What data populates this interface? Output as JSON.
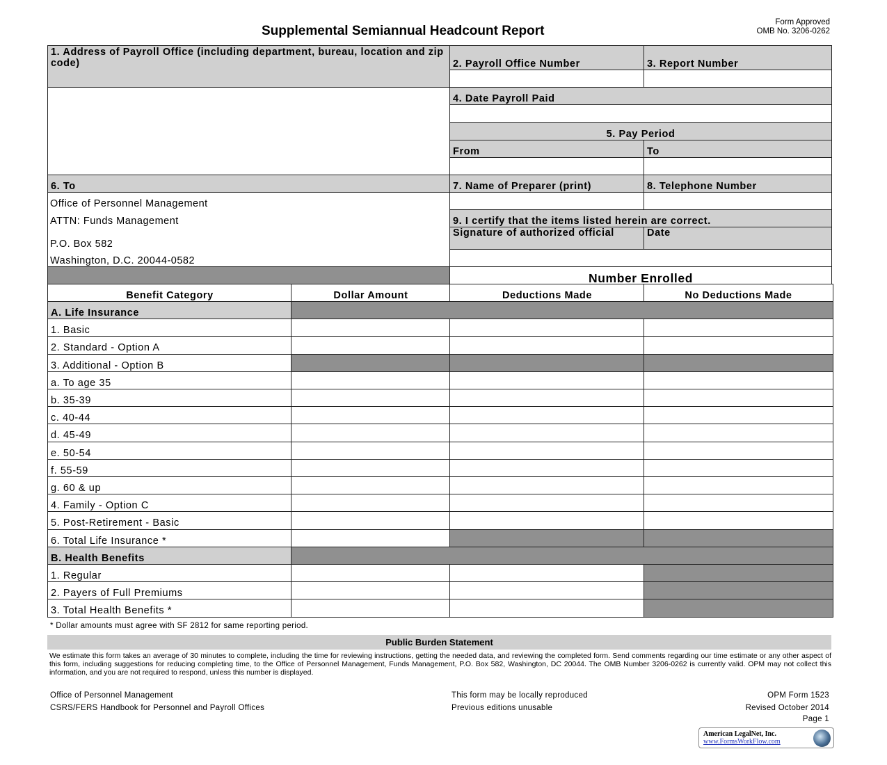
{
  "header": {
    "title": "Supplemental Semiannual Headcount Report",
    "approval": "Form Approved",
    "omb": "OMB No. 3206-0262"
  },
  "fields": {
    "f1": "1. Address of Payroll Office (including department, bureau, location and zip code)",
    "f2": "2. Payroll Office Number",
    "f3": "3. Report Number",
    "f4": "4. Date Payroll Paid",
    "f5": "5. Pay Period",
    "from": "From",
    "to": "To",
    "f6": "6. To",
    "f7": "7. Name of Preparer (print)",
    "f8": "8. Telephone Number",
    "f9": "9. I certify that the items listed herein are correct.",
    "signature": "Signature of authorized official",
    "date": "Date",
    "to_address": [
      "Office of Personnel Management",
      "ATTN: Funds Management",
      "P.O. Box 582",
      "Washington, D.C. 20044-0582"
    ]
  },
  "table": {
    "number_enrolled": "Number Enrolled",
    "columns": [
      "Benefit Category",
      "Dollar Amount",
      "Deductions Made",
      "No Deductions Made"
    ],
    "rows": [
      {
        "label": "A. Life Insurance",
        "section": true,
        "shaded": [
          false,
          true,
          true,
          true
        ]
      },
      {
        "label": "1. Basic",
        "shaded": [
          false,
          false,
          false,
          false
        ]
      },
      {
        "label": "2. Standard - Option A",
        "shaded": [
          false,
          false,
          false,
          false
        ]
      },
      {
        "label": "3. Additional - Option B",
        "shaded": [
          false,
          true,
          true,
          true
        ]
      },
      {
        "label": "a. To age 35",
        "shaded": [
          false,
          false,
          false,
          false
        ]
      },
      {
        "label": "b. 35-39",
        "shaded": [
          false,
          false,
          false,
          false
        ]
      },
      {
        "label": "c. 40-44",
        "shaded": [
          false,
          false,
          false,
          false
        ]
      },
      {
        "label": "d. 45-49",
        "shaded": [
          false,
          false,
          false,
          false
        ]
      },
      {
        "label": "e. 50-54",
        "shaded": [
          false,
          false,
          false,
          false
        ]
      },
      {
        "label": "f. 55-59",
        "shaded": [
          false,
          false,
          false,
          false
        ]
      },
      {
        "label": "g. 60 & up",
        "shaded": [
          false,
          false,
          false,
          false
        ]
      },
      {
        "label": "4. Family - Option C",
        "shaded": [
          false,
          false,
          false,
          false
        ]
      },
      {
        "label": "5. Post-Retirement - Basic",
        "shaded": [
          false,
          false,
          false,
          false
        ]
      },
      {
        "label": "6. Total Life Insurance *",
        "shaded": [
          false,
          false,
          true,
          true
        ]
      },
      {
        "label": "B. Health Benefits",
        "section": true,
        "shaded": [
          false,
          true,
          true,
          true
        ]
      },
      {
        "label": "1. Regular",
        "shaded": [
          false,
          false,
          false,
          true
        ]
      },
      {
        "label": "2. Payers of Full Premiums",
        "shaded": [
          false,
          false,
          false,
          true
        ]
      },
      {
        "label": "3. Total Health Benefits *",
        "shaded": [
          false,
          false,
          false,
          true
        ]
      }
    ]
  },
  "footnote": "* Dollar amounts must agree with SF 2812 for same reporting period.",
  "burden": {
    "title": "Public Burden Statement",
    "text": "We estimate this form takes an average of 30 minutes to complete, including the time for reviewing instructions, getting the needed data, and reviewing the completed form. Send comments regarding our time estimate or any other aspect of this form, including suggestions for reducing completing time, to the Office of Personnel Management, Funds Management, P.O. Box 582, Washington, DC 20044. The OMB Number 3206-0262 is currently valid. OPM may not collect this information, and you are not required to respond, unless this number is displayed."
  },
  "footer": {
    "left1": "Office of Personnel Management",
    "left2": "CSRS/FERS Handbook for Personnel and Payroll Offices",
    "mid1": "This form may be locally reproduced",
    "mid2": "Previous editions unusable",
    "right1": "OPM Form 1523",
    "right2": "Revised October 2014",
    "page": "Page 1"
  },
  "logo": {
    "name": "American LegalNet, Inc.",
    "url": "www.FormsWorkFlow.com"
  }
}
